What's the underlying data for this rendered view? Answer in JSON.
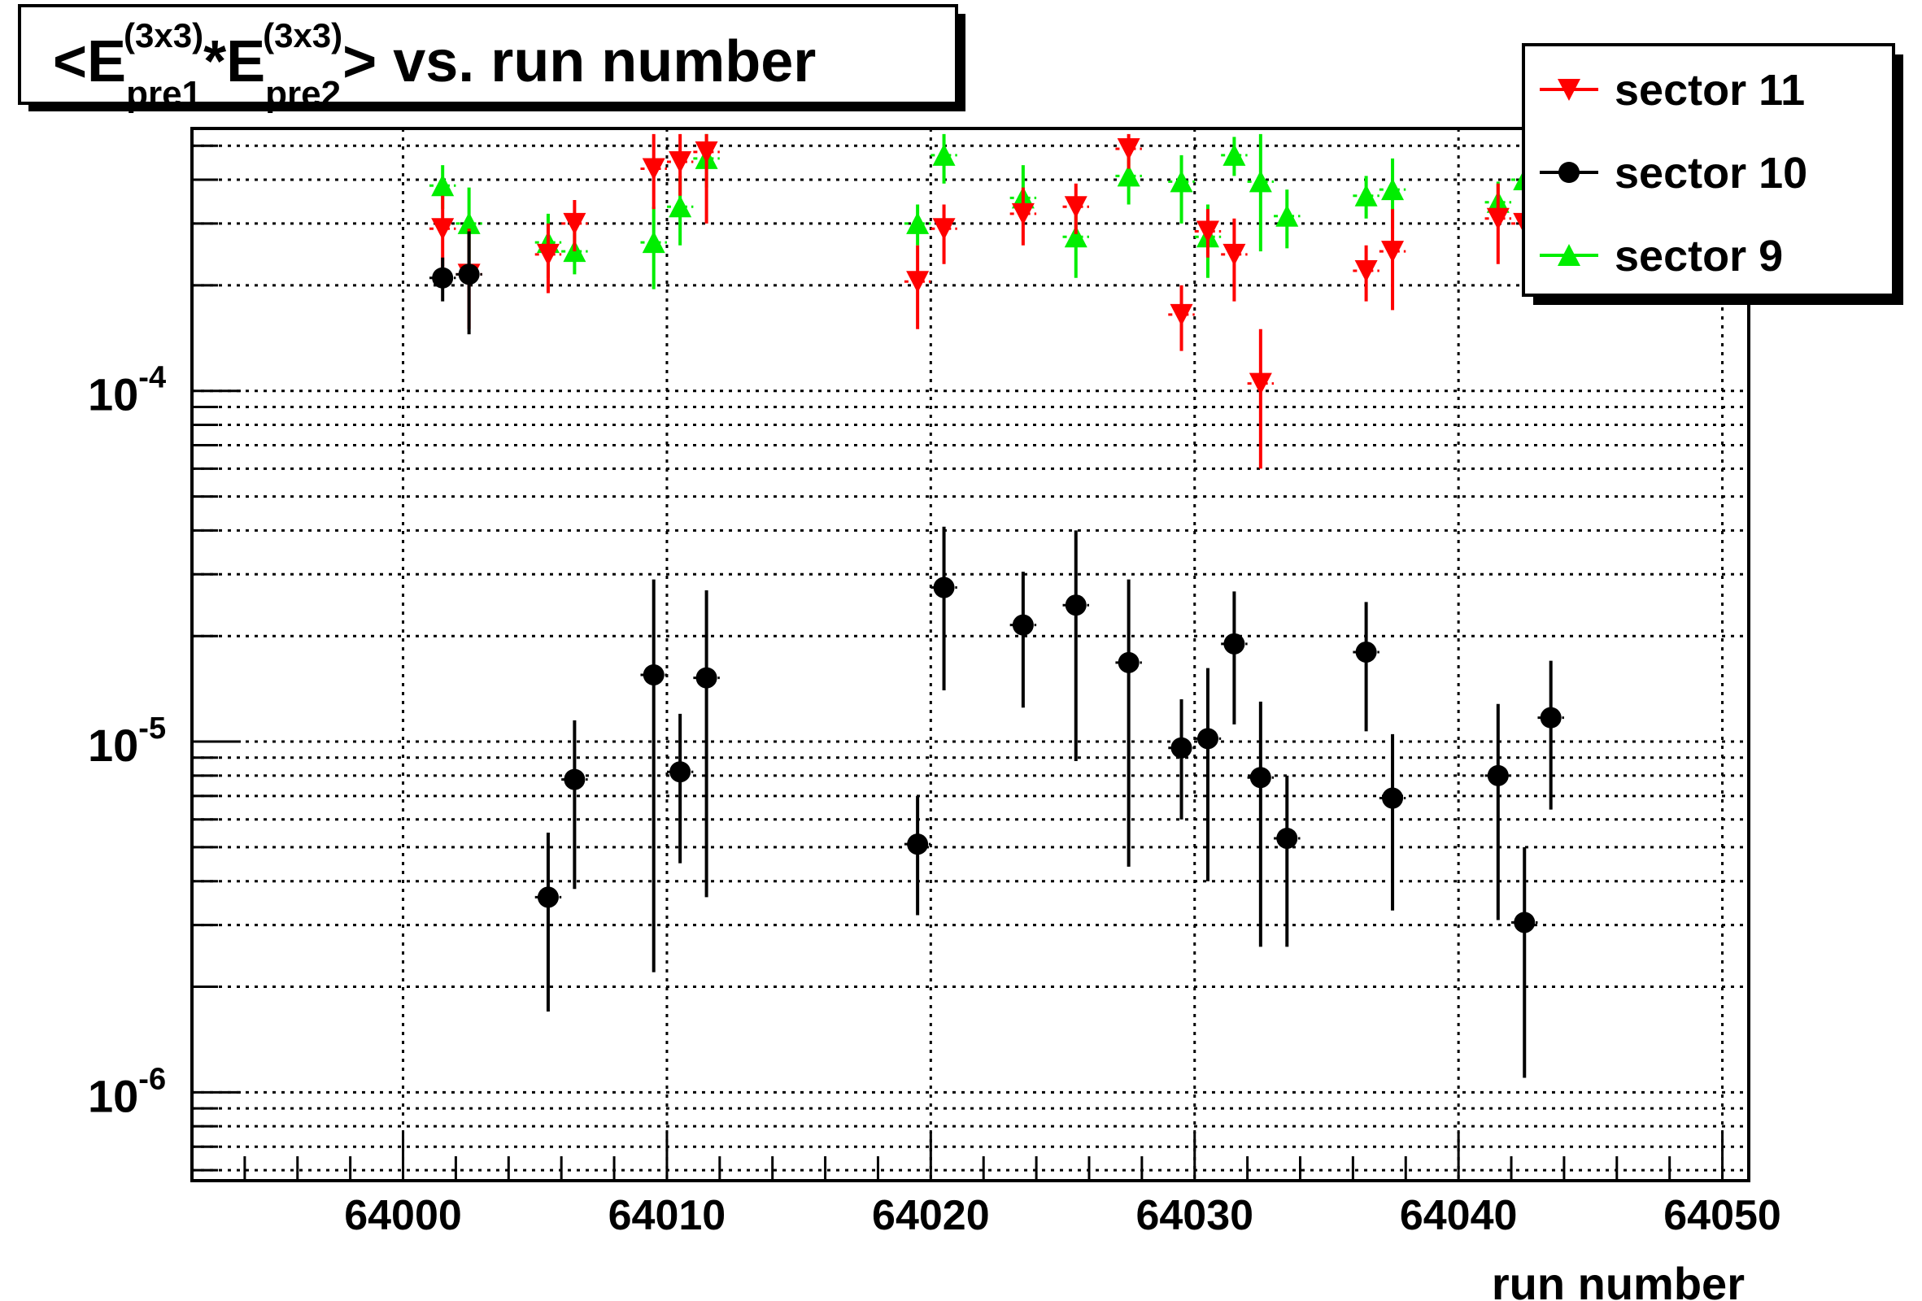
{
  "chart_data": {
    "type": "scatter",
    "title": {
      "prefix": "<E",
      "sub1": "pre1",
      "sup1": "(3x3)",
      "mid": "*E",
      "sub2": "pre2",
      "sup2": "(3x3)",
      "suffix": "> vs. run number"
    },
    "xlabel": "run number",
    "ylabel": "",
    "xlim": [
      63992,
      64051
    ],
    "ylim": [
      5.6e-07,
      0.00056
    ],
    "y_scale": "log",
    "grid": true,
    "legend_position": "top-right",
    "x_ticks": [
      64000,
      64010,
      64020,
      64030,
      64040,
      64050
    ],
    "x_tick_labels": [
      "64000",
      "64010",
      "64020",
      "64030",
      "64040",
      "64050"
    ],
    "y_ticks": [
      {
        "value": 0.0001,
        "base": "10",
        "exp": "-4"
      },
      {
        "value": 1e-05,
        "base": "10",
        "exp": "-5"
      },
      {
        "value": 1e-06,
        "base": "10",
        "exp": "-6"
      }
    ],
    "series": [
      {
        "name": "sector 11",
        "color": "#ff0000",
        "marker": "triangle-down",
        "points": [
          {
            "x": 64001.5,
            "y": 0.00029,
            "lo": 0.00022,
            "hi": 0.00036
          },
          {
            "x": 64002.5,
            "y": 0.000215,
            "lo": 0.00015,
            "hi": 0.00029
          },
          {
            "x": 64005.5,
            "y": 0.000245,
            "lo": 0.00019,
            "hi": 0.0003
          },
          {
            "x": 64006.5,
            "y": 0.0003,
            "lo": 0.00025,
            "hi": 0.00035
          },
          {
            "x": 64009.5,
            "y": 0.00043,
            "lo": 0.00033,
            "hi": 0.00054
          },
          {
            "x": 64010.5,
            "y": 0.00045,
            "lo": 0.00036,
            "hi": 0.00054
          },
          {
            "x": 64011.5,
            "y": 0.00048,
            "lo": 0.0003,
            "hi": 0.00054
          },
          {
            "x": 64019.5,
            "y": 0.000205,
            "lo": 0.00015,
            "hi": 0.00026
          },
          {
            "x": 64020.5,
            "y": 0.00029,
            "lo": 0.00023,
            "hi": 0.00034
          },
          {
            "x": 64023.5,
            "y": 0.00032,
            "lo": 0.00026,
            "hi": 0.00038
          },
          {
            "x": 64025.5,
            "y": 0.000335,
            "lo": 0.00028,
            "hi": 0.00039
          },
          {
            "x": 64027.5,
            "y": 0.00049,
            "lo": 0.00043,
            "hi": 0.00054
          },
          {
            "x": 64029.5,
            "y": 0.000165,
            "lo": 0.00013,
            "hi": 0.0002
          },
          {
            "x": 64030.5,
            "y": 0.000285,
            "lo": 0.00024,
            "hi": 0.00033
          },
          {
            "x": 64031.5,
            "y": 0.000245,
            "lo": 0.00018,
            "hi": 0.00031
          },
          {
            "x": 64032.5,
            "y": 0.000105,
            "lo": 6e-05,
            "hi": 0.00015
          },
          {
            "x": 64036.5,
            "y": 0.00022,
            "lo": 0.00018,
            "hi": 0.00026
          },
          {
            "x": 64037.5,
            "y": 0.00025,
            "lo": 0.00017,
            "hi": 0.00033
          },
          {
            "x": 64041.5,
            "y": 0.00031,
            "lo": 0.00023,
            "hi": 0.00039
          },
          {
            "x": 64042.5,
            "y": 0.0003,
            "lo": 0.00024,
            "hi": 0.00036
          }
        ]
      },
      {
        "name": "sector 10",
        "color": "#000000",
        "marker": "circle",
        "points": [
          {
            "x": 64001.5,
            "y": 0.00021,
            "lo": 0.00018,
            "hi": 0.00024
          },
          {
            "x": 64002.5,
            "y": 0.000215,
            "lo": 0.000145,
            "hi": 0.000285
          },
          {
            "x": 64005.5,
            "y": 3.6e-06,
            "lo": 1.7e-06,
            "hi": 5.5e-06
          },
          {
            "x": 64006.5,
            "y": 7.8e-06,
            "lo": 3.8e-06,
            "hi": 1.15e-05
          },
          {
            "x": 64009.5,
            "y": 1.55e-05,
            "lo": 2.2e-06,
            "hi": 2.9e-05
          },
          {
            "x": 64010.5,
            "y": 8.2e-06,
            "lo": 4.5e-06,
            "hi": 1.2e-05
          },
          {
            "x": 64011.5,
            "y": 1.52e-05,
            "lo": 3.6e-06,
            "hi": 2.7e-05
          },
          {
            "x": 64019.5,
            "y": 5.1e-06,
            "lo": 3.2e-06,
            "hi": 7e-06
          },
          {
            "x": 64020.5,
            "y": 2.75e-05,
            "lo": 1.4e-05,
            "hi": 4.1e-05
          },
          {
            "x": 64023.5,
            "y": 2.15e-05,
            "lo": 1.25e-05,
            "hi": 3.05e-05
          },
          {
            "x": 64025.5,
            "y": 2.45e-05,
            "lo": 8.8e-06,
            "hi": 4e-05
          },
          {
            "x": 64027.5,
            "y": 1.68e-05,
            "lo": 4.4e-06,
            "hi": 2.9e-05
          },
          {
            "x": 64029.5,
            "y": 9.6e-06,
            "lo": 6e-06,
            "hi": 1.32e-05
          },
          {
            "x": 64030.5,
            "y": 1.02e-05,
            "lo": 4e-06,
            "hi": 1.62e-05
          },
          {
            "x": 64031.5,
            "y": 1.9e-05,
            "lo": 1.12e-05,
            "hi": 2.68e-05
          },
          {
            "x": 64032.5,
            "y": 7.9e-06,
            "lo": 2.6e-06,
            "hi": 1.3e-05
          },
          {
            "x": 64033.5,
            "y": 5.3e-06,
            "lo": 2.6e-06,
            "hi": 8e-06
          },
          {
            "x": 64036.5,
            "y": 1.8e-05,
            "lo": 1.07e-05,
            "hi": 2.5e-05
          },
          {
            "x": 64037.5,
            "y": 6.9e-06,
            "lo": 3.3e-06,
            "hi": 1.05e-05
          },
          {
            "x": 64041.5,
            "y": 8e-06,
            "lo": 3.1e-06,
            "hi": 1.28e-05
          },
          {
            "x": 64042.5,
            "y": 3.05e-06,
            "lo": 1.1e-06,
            "hi": 5e-06
          },
          {
            "x": 64043.5,
            "y": 1.17e-05,
            "lo": 6.4e-06,
            "hi": 1.7e-05
          }
        ]
      },
      {
        "name": "sector 9",
        "color": "#00ee00",
        "marker": "triangle-up",
        "points": [
          {
            "x": 64001.5,
            "y": 0.000385,
            "lo": 0.00033,
            "hi": 0.00044
          },
          {
            "x": 64002.5,
            "y": 0.0003,
            "lo": 0.00022,
            "hi": 0.00038
          },
          {
            "x": 64005.5,
            "y": 0.000265,
            "lo": 0.00021,
            "hi": 0.00032
          },
          {
            "x": 64006.5,
            "y": 0.00025,
            "lo": 0.000215,
            "hi": 0.000285
          },
          {
            "x": 64009.5,
            "y": 0.000265,
            "lo": 0.000195,
            "hi": 0.000335
          },
          {
            "x": 64010.5,
            "y": 0.000335,
            "lo": 0.00026,
            "hi": 0.00041
          },
          {
            "x": 64011.5,
            "y": 0.00046,
            "lo": 0.00038,
            "hi": 0.00054
          },
          {
            "x": 64019.5,
            "y": 0.0003,
            "lo": 0.00026,
            "hi": 0.00034
          },
          {
            "x": 64020.5,
            "y": 0.00047,
            "lo": 0.00039,
            "hi": 0.00054
          },
          {
            "x": 64023.5,
            "y": 0.000355,
            "lo": 0.0003,
            "hi": 0.00044
          },
          {
            "x": 64025.5,
            "y": 0.000275,
            "lo": 0.00021,
            "hi": 0.00034
          },
          {
            "x": 64027.5,
            "y": 0.00041,
            "lo": 0.00034,
            "hi": 0.00048
          },
          {
            "x": 64029.5,
            "y": 0.000395,
            "lo": 0.0003,
            "hi": 0.00047
          },
          {
            "x": 64030.5,
            "y": 0.000275,
            "lo": 0.00021,
            "hi": 0.00034
          },
          {
            "x": 64031.5,
            "y": 0.00047,
            "lo": 0.00041,
            "hi": 0.00053
          },
          {
            "x": 64032.5,
            "y": 0.000395,
            "lo": 0.00025,
            "hi": 0.00054
          },
          {
            "x": 64033.5,
            "y": 0.000315,
            "lo": 0.000255,
            "hi": 0.000375
          },
          {
            "x": 64036.5,
            "y": 0.00036,
            "lo": 0.00031,
            "hi": 0.00041
          },
          {
            "x": 64037.5,
            "y": 0.000375,
            "lo": 0.00029,
            "hi": 0.00046
          },
          {
            "x": 64041.5,
            "y": 0.000345,
            "lo": 0.000295,
            "hi": 0.000395
          },
          {
            "x": 64042.5,
            "y": 0.0004,
            "lo": 0.00034,
            "hi": 0.00046
          }
        ]
      }
    ]
  }
}
